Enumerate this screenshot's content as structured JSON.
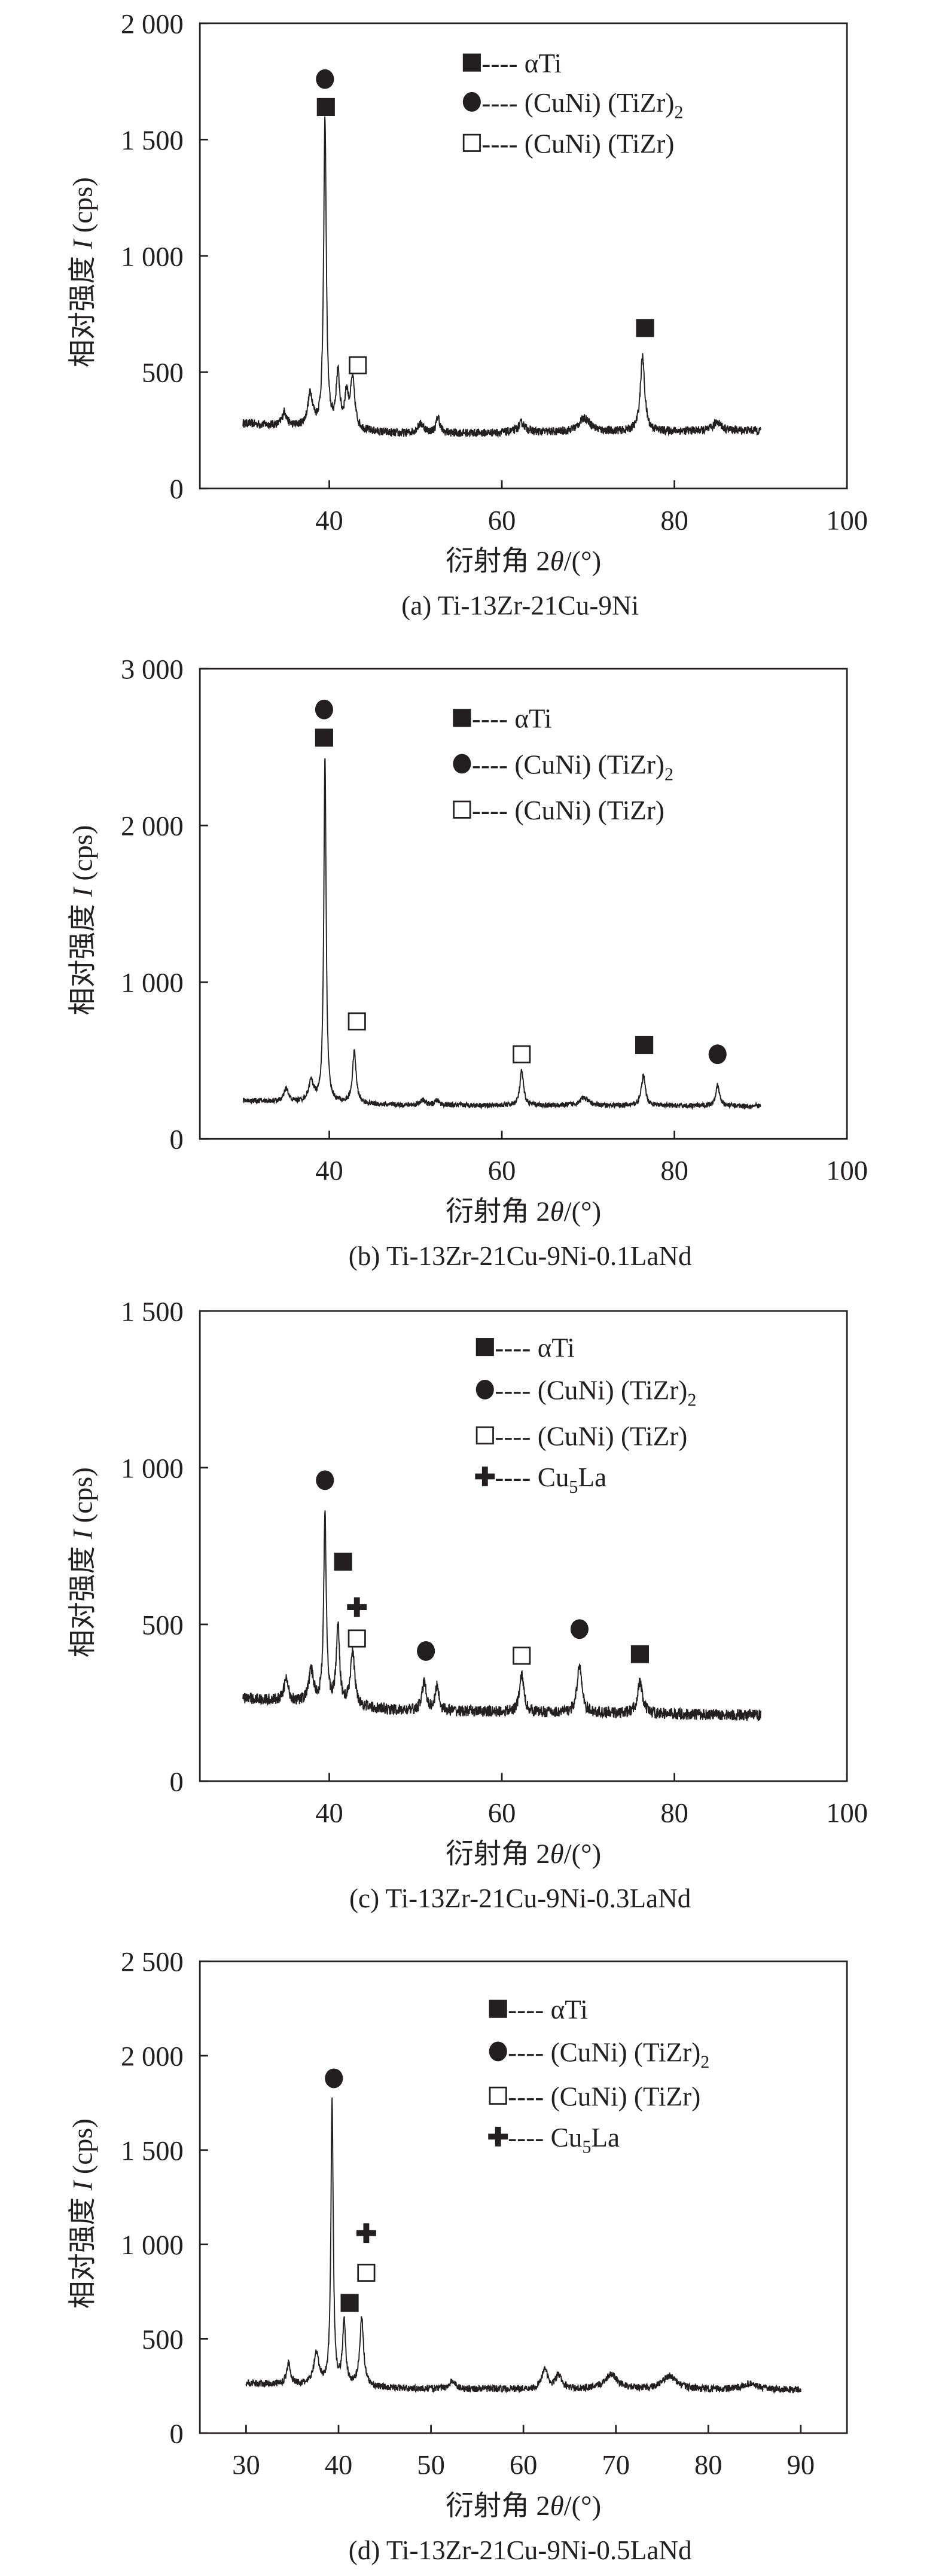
{
  "chart_data": [
    {
      "type": "line",
      "id": "a",
      "caption": "(a) Ti-13Zr-21Cu-9Ni",
      "xlabel": {
        "pre": "衍射角 2",
        "italic": "θ",
        "post": "/(°)"
      },
      "ylabel": {
        "pre": "相对强度 ",
        "italic": "I",
        "post": " (cps)"
      },
      "xlim": [
        25,
        100
      ],
      "ylim": [
        0,
        2000
      ],
      "xticks": [
        {
          "v": 40,
          "label": "40"
        },
        {
          "v": 60,
          "label": "60"
        },
        {
          "v": 80,
          "label": "80"
        },
        {
          "v": 100,
          "label": "100"
        }
      ],
      "yticks": [
        {
          "v": 0,
          "label": "0"
        },
        {
          "v": 500,
          "label": "500"
        },
        {
          "v": 1000,
          "label": "1 000"
        },
        {
          "v": 1500,
          "label": "1 500"
        },
        {
          "v": 2000,
          "label": "2 000"
        }
      ],
      "series": {
        "name": "XRD pattern",
        "x_range": [
          30,
          90
        ],
        "baseline": [
          280,
          235,
          250
        ],
        "noise": 18,
        "peaks": [
          [
            34.8,
            60,
            0.3
          ],
          [
            37.8,
            140,
            0.35
          ],
          [
            39.5,
            1330,
            0.18
          ],
          [
            41.0,
            230,
            0.25
          ],
          [
            42.0,
            140,
            0.25
          ],
          [
            42.7,
            210,
            0.3
          ],
          [
            50.6,
            40,
            0.5
          ],
          [
            52.6,
            70,
            0.25
          ],
          [
            62.3,
            40,
            0.5
          ],
          [
            69.6,
            60,
            0.8
          ],
          [
            76.3,
            320,
            0.3
          ],
          [
            85.0,
            40,
            0.5
          ]
        ]
      },
      "legend": [
        {
          "marker": "filled-square",
          "text": "---- αTi"
        },
        {
          "marker": "filled-circle",
          "text": "---- (CuNi) (TiZr)",
          "sub": "2"
        },
        {
          "marker": "open-square",
          "text": "---- (CuNi) (TiZr)"
        }
      ],
      "markers": [
        {
          "type": "filled-circle",
          "x": 39.5,
          "y": 1760
        },
        {
          "type": "filled-square",
          "x": 39.6,
          "y": 1640
        },
        {
          "type": "open-square",
          "x": 43.3,
          "y": 530
        },
        {
          "type": "filled-square",
          "x": 76.6,
          "y": 690
        }
      ]
    },
    {
      "type": "line",
      "id": "b",
      "caption": "(b) Ti-13Zr-21Cu-9Ni-0.1LaNd",
      "xlabel": {
        "pre": "衍射角 2",
        "italic": "θ",
        "post": "/(°)"
      },
      "ylabel": {
        "pre": "相对强度 ",
        "italic": "I",
        "post": " (cps)"
      },
      "xlim": [
        25,
        100
      ],
      "ylim": [
        0,
        3000
      ],
      "xticks": [
        {
          "v": 40,
          "label": "40"
        },
        {
          "v": 60,
          "label": "60"
        },
        {
          "v": 80,
          "label": "80"
        },
        {
          "v": 100,
          "label": "100"
        }
      ],
      "yticks": [
        {
          "v": 0,
          "label": "0"
        },
        {
          "v": 1000,
          "label": "1 000"
        },
        {
          "v": 2000,
          "label": "2 000"
        },
        {
          "v": 3000,
          "label": "3 000"
        }
      ],
      "series": {
        "name": "XRD pattern",
        "x_range": [
          30,
          90
        ],
        "baseline": [
          245,
          215,
          210
        ],
        "noise": 16,
        "peaks": [
          [
            35.0,
            80,
            0.3
          ],
          [
            37.9,
            130,
            0.35
          ],
          [
            39.5,
            2200,
            0.16
          ],
          [
            42.9,
            330,
            0.25
          ],
          [
            50.8,
            30,
            0.4
          ],
          [
            52.5,
            30,
            0.3
          ],
          [
            62.3,
            220,
            0.25
          ],
          [
            69.5,
            50,
            0.6
          ],
          [
            76.4,
            190,
            0.28
          ],
          [
            85.0,
            130,
            0.28
          ]
        ]
      },
      "legend": [
        {
          "marker": "filled-square",
          "text": "---- αTi"
        },
        {
          "marker": "filled-circle",
          "text": "---- (CuNi) (TiZr)",
          "sub": "2"
        },
        {
          "marker": "open-square",
          "text": "---- (CuNi) (TiZr)"
        }
      ],
      "markers": [
        {
          "type": "filled-circle",
          "x": 39.4,
          "y": 2740
        },
        {
          "type": "filled-square",
          "x": 39.4,
          "y": 2560
        },
        {
          "type": "open-square",
          "x": 43.2,
          "y": 750
        },
        {
          "type": "open-square",
          "x": 62.3,
          "y": 540
        },
        {
          "type": "filled-square",
          "x": 76.5,
          "y": 600
        },
        {
          "type": "filled-circle",
          "x": 85.0,
          "y": 540
        }
      ]
    },
    {
      "type": "line",
      "id": "c",
      "caption": "(c) Ti-13Zr-21Cu-9Ni-0.3LaNd",
      "xlabel": {
        "pre": "衍射角 2",
        "italic": "θ",
        "post": "/(°)"
      },
      "ylabel": {
        "pre": "相对强度 ",
        "italic": "I",
        "post": " (cps)"
      },
      "xlim": [
        25,
        100
      ],
      "ylim": [
        0,
        1500
      ],
      "xticks": [
        {
          "v": 40,
          "label": "40"
        },
        {
          "v": 60,
          "label": "60"
        },
        {
          "v": 80,
          "label": "80"
        },
        {
          "v": 100,
          "label": "100"
        }
      ],
      "yticks": [
        {
          "v": 0,
          "label": "0"
        },
        {
          "v": 500,
          "label": "500"
        },
        {
          "v": 1000,
          "label": "1 000"
        },
        {
          "v": 1500,
          "label": "1 500"
        }
      ],
      "series": {
        "name": "XRD pattern",
        "x_range": [
          30,
          90
        ],
        "baseline": [
          265,
          225,
          210
        ],
        "noise": 18,
        "peaks": [
          [
            35.0,
            70,
            0.3
          ],
          [
            37.9,
            100,
            0.35
          ],
          [
            39.5,
            600,
            0.18
          ],
          [
            41.0,
            250,
            0.22
          ],
          [
            42.7,
            170,
            0.3
          ],
          [
            51.0,
            90,
            0.3
          ],
          [
            52.5,
            80,
            0.25
          ],
          [
            62.3,
            120,
            0.3
          ],
          [
            69.0,
            160,
            0.3
          ],
          [
            76.0,
            100,
            0.35
          ]
        ]
      },
      "legend": [
        {
          "marker": "filled-square",
          "text": "---- αTi"
        },
        {
          "marker": "filled-circle",
          "text": "---- (CuNi) (TiZr)",
          "sub": "2"
        },
        {
          "marker": "open-square",
          "text": "---- (CuNi) (TiZr)"
        },
        {
          "marker": "cross",
          "text": "---- Cu",
          "sub": "5",
          "post": "La"
        }
      ],
      "markers": [
        {
          "type": "filled-circle",
          "x": 39.5,
          "y": 960
        },
        {
          "type": "filled-square",
          "x": 41.6,
          "y": 700
        },
        {
          "type": "cross",
          "x": 43.2,
          "y": 555
        },
        {
          "type": "open-square",
          "x": 43.2,
          "y": 455
        },
        {
          "type": "filled-circle",
          "x": 51.2,
          "y": 415
        },
        {
          "type": "open-square",
          "x": 62.3,
          "y": 400
        },
        {
          "type": "filled-circle",
          "x": 69.0,
          "y": 485
        },
        {
          "type": "filled-square",
          "x": 76.0,
          "y": 405
        }
      ]
    },
    {
      "type": "line",
      "id": "d",
      "caption": "(d) Ti-13Zr-21Cu-9Ni-0.5LaNd",
      "xlabel": {
        "pre": "衍射角 2",
        "italic": "θ",
        "post": "/(°)"
      },
      "ylabel": {
        "pre": "相对强度 ",
        "italic": "I",
        "post": " (cps)"
      },
      "xlim": [
        25,
        95
      ],
      "ylim": [
        0,
        2500
      ],
      "xticks": [
        {
          "v": 30,
          "label": "30"
        },
        {
          "v": 40,
          "label": "40"
        },
        {
          "v": 50,
          "label": "50"
        },
        {
          "v": 60,
          "label": "60"
        },
        {
          "v": 70,
          "label": "70"
        },
        {
          "v": 80,
          "label": "80"
        },
        {
          "v": 90,
          "label": "90"
        }
      ],
      "yticks": [
        {
          "v": 0,
          "label": "0"
        },
        {
          "v": 500,
          "label": "500"
        },
        {
          "v": 1000,
          "label": "1 000"
        },
        {
          "v": 1500,
          "label": "1 500"
        },
        {
          "v": 2000,
          "label": "2 000"
        },
        {
          "v": 2500,
          "label": "2 500"
        }
      ],
      "series": {
        "name": "XRD pattern",
        "x_range": [
          30,
          90
        ],
        "baseline": [
          265,
          235,
          230
        ],
        "noise": 18,
        "peaks": [
          [
            34.6,
            110,
            0.25
          ],
          [
            37.6,
            160,
            0.35
          ],
          [
            39.3,
            1500,
            0.15
          ],
          [
            40.6,
            330,
            0.2
          ],
          [
            42.5,
            360,
            0.25
          ],
          [
            52.3,
            40,
            0.4
          ],
          [
            62.3,
            110,
            0.35
          ],
          [
            63.8,
            70,
            0.4
          ],
          [
            69.5,
            80,
            0.8
          ],
          [
            75.8,
            70,
            0.9
          ],
          [
            84.5,
            30,
            0.9
          ]
        ]
      },
      "legend": [
        {
          "marker": "filled-square",
          "text": "---- αTi"
        },
        {
          "marker": "filled-circle",
          "text": "---- (CuNi) (TiZr)",
          "sub": "2"
        },
        {
          "marker": "open-square",
          "text": "---- (CuNi) (TiZr)"
        },
        {
          "marker": "cross",
          "text": "---- Cu",
          "sub": "5",
          "post": "La"
        }
      ],
      "markers": [
        {
          "type": "filled-circle",
          "x": 39.5,
          "y": 1880
        },
        {
          "type": "filled-square",
          "x": 41.2,
          "y": 690
        },
        {
          "type": "open-square",
          "x": 43.0,
          "y": 850
        },
        {
          "type": "cross",
          "x": 43.0,
          "y": 1060
        }
      ]
    }
  ]
}
